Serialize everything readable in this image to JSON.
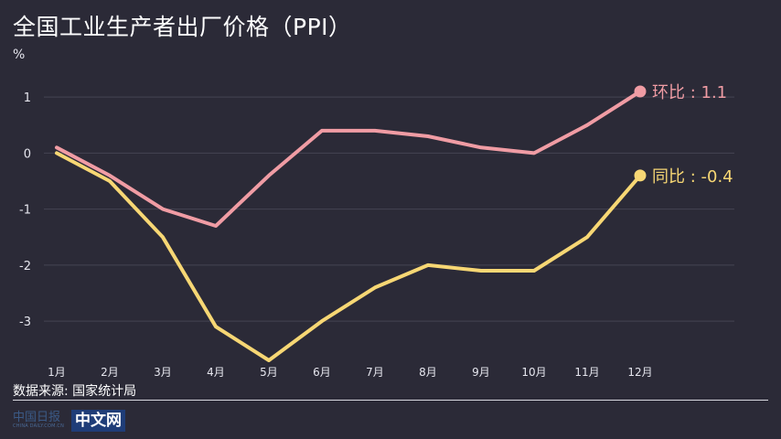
{
  "header": {
    "title": "全国工业生产者出厂价格（PPI）",
    "unit": "%"
  },
  "footer": {
    "source": "数据来源: 国家统计局",
    "logo_cn": "中国日报",
    "logo_en": "CHINA DAILY.COM.CN",
    "logo_box": "中文网"
  },
  "chart_data": {
    "type": "line",
    "categories": [
      "1月",
      "2月",
      "3月",
      "4月",
      "5月",
      "6月",
      "7月",
      "8月",
      "9月",
      "10月",
      "11月",
      "12月"
    ],
    "ylim": [
      -3.7,
      1.1
    ],
    "yticks": [
      1,
      0,
      -1,
      -2,
      -3
    ],
    "ytick_labels": [
      "1",
      "0",
      "-1",
      "-2",
      "-3"
    ],
    "grid": true,
    "series": [
      {
        "name": "环比",
        "label": "环比 : 1.1",
        "color": "#f09ca4",
        "values": [
          0.1,
          -0.4,
          -1.0,
          -1.3,
          -0.4,
          0.4,
          0.4,
          0.3,
          0.1,
          0.0,
          0.5,
          1.1
        ]
      },
      {
        "name": "同比",
        "label": "同比 : -0.4",
        "color": "#f7d774",
        "values": [
          0.0,
          -0.5,
          -1.5,
          -3.1,
          -3.7,
          -3.0,
          -2.4,
          -2.0,
          -2.1,
          -2.1,
          -1.5,
          -0.4
        ]
      }
    ]
  }
}
